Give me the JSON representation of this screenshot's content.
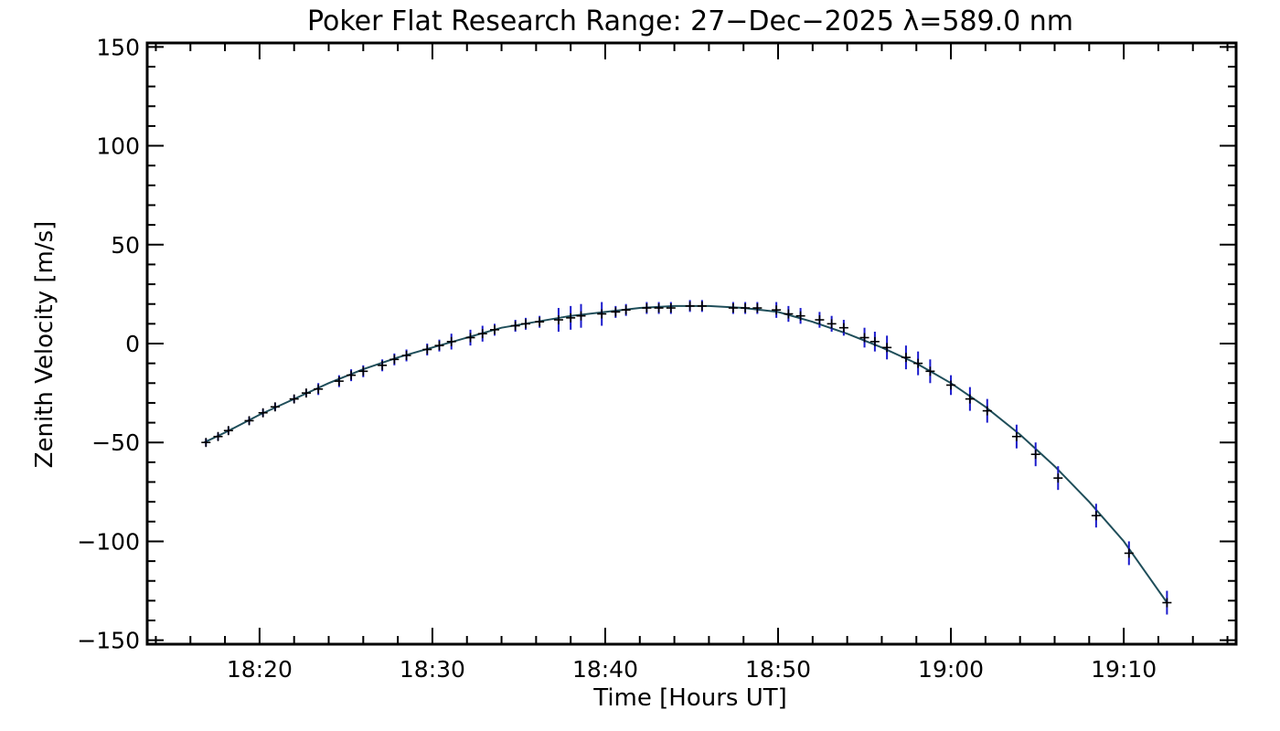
{
  "chart_data": {
    "type": "line",
    "title": "Poker Flat Research Range: 27−Dec−2025 λ=589.0 nm",
    "xlabel": "Time [Hours UT]",
    "ylabel": "Zenith Velocity [m/s]",
    "x_unit": "minutes after 18:00 UT",
    "xlim": [
      13.5,
      76.5
    ],
    "ylim": [
      -152,
      152
    ],
    "x_ticks": [
      {
        "value": 20,
        "label": "18:20"
      },
      {
        "value": 30,
        "label": "18:30"
      },
      {
        "value": 40,
        "label": "18:40"
      },
      {
        "value": 50,
        "label": "18:50"
      },
      {
        "value": 60,
        "label": "19:00"
      },
      {
        "value": 70,
        "label": "19:10"
      }
    ],
    "y_ticks": [
      {
        "value": 150,
        "label": "150"
      },
      {
        "value": 100,
        "label": "100"
      },
      {
        "value": 50,
        "label": "50"
      },
      {
        "value": 0,
        "label": "0"
      },
      {
        "value": -50,
        "label": "−50"
      },
      {
        "value": -100,
        "label": "−100"
      },
      {
        "value": -150,
        "label": "−150"
      }
    ],
    "grid": false,
    "colors": {
      "fit_line": "#1f4e5a",
      "error_bars": "#1a1acc",
      "markers": "#000000",
      "axes": "#000000"
    },
    "series": [
      {
        "kind": "fit_curve",
        "x": [
          16.8,
          18.0,
          20.0,
          22.0,
          24.0,
          26.0,
          28.0,
          30.0,
          32.0,
          34.0,
          36.0,
          38.0,
          40.0,
          42.0,
          44.0,
          46.0,
          48.0,
          50.0,
          52.0,
          54.0,
          56.0,
          58.0,
          60.0,
          62.0,
          64.0,
          66.0,
          68.0,
          70.0,
          72.5
        ],
        "y": [
          -50,
          -45,
          -36,
          -28,
          -20,
          -13,
          -7,
          -2,
          3,
          8,
          11,
          14,
          16,
          18,
          19,
          19,
          18,
          16,
          11,
          5,
          -2,
          -10,
          -20,
          -32,
          -46,
          -62,
          -80,
          -100,
          -131
        ]
      },
      {
        "kind": "measurements",
        "points": [
          {
            "x": 16.9,
            "y": -50,
            "err": 2
          },
          {
            "x": 17.6,
            "y": -47,
            "err": 2
          },
          {
            "x": 18.2,
            "y": -44,
            "err": 2
          },
          {
            "x": 19.4,
            "y": -39,
            "err": 2
          },
          {
            "x": 20.2,
            "y": -35,
            "err": 2
          },
          {
            "x": 20.9,
            "y": -32,
            "err": 2
          },
          {
            "x": 22.0,
            "y": -28,
            "err": 2
          },
          {
            "x": 22.7,
            "y": -25,
            "err": 2
          },
          {
            "x": 23.4,
            "y": -23,
            "err": 3
          },
          {
            "x": 24.6,
            "y": -19,
            "err": 3
          },
          {
            "x": 25.3,
            "y": -16,
            "err": 3
          },
          {
            "x": 26.0,
            "y": -14,
            "err": 3
          },
          {
            "x": 27.1,
            "y": -11,
            "err": 3
          },
          {
            "x": 27.8,
            "y": -8,
            "err": 3
          },
          {
            "x": 28.5,
            "y": -6,
            "err": 3
          },
          {
            "x": 29.7,
            "y": -3,
            "err": 3
          },
          {
            "x": 30.4,
            "y": -1,
            "err": 3
          },
          {
            "x": 31.1,
            "y": 1,
            "err": 4
          },
          {
            "x": 32.2,
            "y": 3,
            "err": 4
          },
          {
            "x": 32.9,
            "y": 5,
            "err": 4
          },
          {
            "x": 33.6,
            "y": 7,
            "err": 3
          },
          {
            "x": 34.8,
            "y": 9,
            "err": 3
          },
          {
            "x": 35.4,
            "y": 10,
            "err": 3
          },
          {
            "x": 36.2,
            "y": 11,
            "err": 3
          },
          {
            "x": 37.3,
            "y": 12,
            "err": 6
          },
          {
            "x": 38.0,
            "y": 13,
            "err": 6
          },
          {
            "x": 38.6,
            "y": 14,
            "err": 6
          },
          {
            "x": 39.8,
            "y": 15,
            "err": 6
          },
          {
            "x": 40.6,
            "y": 16,
            "err": 3
          },
          {
            "x": 41.2,
            "y": 17,
            "err": 3
          },
          {
            "x": 42.4,
            "y": 18,
            "err": 3
          },
          {
            "x": 43.1,
            "y": 18,
            "err": 3
          },
          {
            "x": 43.8,
            "y": 18,
            "err": 3
          },
          {
            "x": 44.9,
            "y": 19,
            "err": 3
          },
          {
            "x": 45.6,
            "y": 19,
            "err": 3
          },
          {
            "x": 47.4,
            "y": 18,
            "err": 3
          },
          {
            "x": 48.1,
            "y": 18,
            "err": 3
          },
          {
            "x": 48.8,
            "y": 18,
            "err": 3
          },
          {
            "x": 49.9,
            "y": 17,
            "err": 4
          },
          {
            "x": 50.6,
            "y": 15,
            "err": 4
          },
          {
            "x": 51.3,
            "y": 14,
            "err": 4
          },
          {
            "x": 52.4,
            "y": 12,
            "err": 4
          },
          {
            "x": 53.1,
            "y": 10,
            "err": 4
          },
          {
            "x": 53.8,
            "y": 8,
            "err": 4
          },
          {
            "x": 55.0,
            "y": 3,
            "err": 5
          },
          {
            "x": 55.6,
            "y": 1,
            "err": 5
          },
          {
            "x": 56.3,
            "y": -2,
            "err": 6
          },
          {
            "x": 57.4,
            "y": -7,
            "err": 6
          },
          {
            "x": 58.1,
            "y": -10,
            "err": 6
          },
          {
            "x": 58.8,
            "y": -14,
            "err": 6
          },
          {
            "x": 60.0,
            "y": -21,
            "err": 5
          },
          {
            "x": 61.1,
            "y": -28,
            "err": 6
          },
          {
            "x": 62.1,
            "y": -34,
            "err": 6
          },
          {
            "x": 63.8,
            "y": -47,
            "err": 6
          },
          {
            "x": 64.9,
            "y": -56,
            "err": 6
          },
          {
            "x": 66.2,
            "y": -68,
            "err": 6
          },
          {
            "x": 68.4,
            "y": -87,
            "err": 6
          },
          {
            "x": 70.3,
            "y": -106,
            "err": 6
          },
          {
            "x": 72.5,
            "y": -131,
            "err": 6
          }
        ]
      }
    ]
  }
}
